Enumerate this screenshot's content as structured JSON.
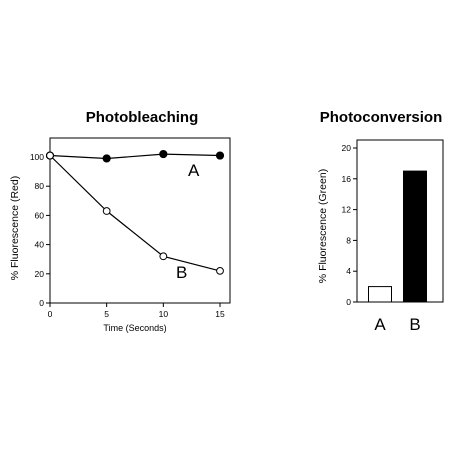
{
  "chart_data": [
    {
      "type": "line",
      "title": "Photobleaching",
      "xlabel": "Time (Seconds)",
      "ylabel": "% Fluorescence (Red)",
      "xlim": [
        0,
        15
      ],
      "ylim": [
        0,
        100
      ],
      "xticks": [
        "0",
        "5",
        "10",
        "15"
      ],
      "xtick_values": [
        0,
        5,
        10,
        15
      ],
      "yticks": [
        "0",
        "20",
        "40",
        "60",
        "80",
        "100"
      ],
      "ytick_values": [
        0,
        20,
        40,
        60,
        80,
        100
      ],
      "grid": false,
      "series": [
        {
          "name": "A",
          "marker": "filled-circle",
          "color": "#000000",
          "x": [
            0,
            5,
            10,
            15
          ],
          "y": [
            101,
            99,
            102,
            101
          ]
        },
        {
          "name": "B",
          "marker": "open-circle",
          "color": "#000000",
          "x": [
            0,
            5,
            10,
            15
          ],
          "y": [
            101,
            63,
            32,
            22
          ]
        }
      ]
    },
    {
      "type": "bar",
      "title": "Photoconversion",
      "xlabel": "",
      "ylabel": "% Fluorescence (Green)",
      "ylim": [
        0,
        20
      ],
      "yticks": [
        "0",
        "4",
        "8",
        "12",
        "16",
        "20"
      ],
      "ytick_values": [
        0,
        4,
        8,
        12,
        16,
        20
      ],
      "categories": [
        "A",
        "B"
      ],
      "values": [
        2,
        17
      ],
      "bar_fills": [
        "#ffffff",
        "#000000"
      ],
      "grid": false
    }
  ]
}
